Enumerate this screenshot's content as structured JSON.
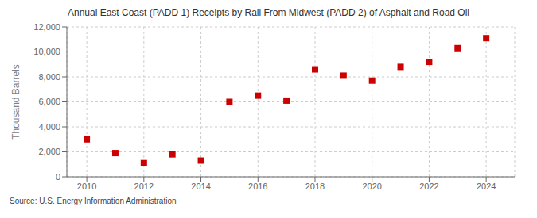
{
  "chart_data": {
    "type": "scatter",
    "title": "Annual East Coast (PADD 1) Receipts by Rail From Midwest (PADD 2) of Asphalt and Road Oil",
    "ylabel": "Thousand Barrels",
    "annotations": [
      "Source: U.S. Energy Information Administration"
    ],
    "x": [
      2010,
      2011,
      2012,
      2013,
      2014,
      2015,
      2016,
      2017,
      2018,
      2019,
      2020,
      2021,
      2022,
      2023,
      2024
    ],
    "values": [
      3000,
      1900,
      1100,
      1800,
      1300,
      6000,
      6500,
      6100,
      8600,
      8100,
      7700,
      8800,
      9200,
      10300,
      11100
    ],
    "color": "#CC0000",
    "marker": "square",
    "xlim": [
      2009.3,
      2025.0
    ],
    "xticks": [
      2010,
      2012,
      2014,
      2016,
      2018,
      2020,
      2022,
      2024
    ],
    "ylim": [
      0,
      12000
    ],
    "yticks": [
      0,
      {
        "value": 2000,
        "label": "2,000"
      },
      {
        "value": 4000,
        "label": "4,000"
      },
      {
        "value": 6000,
        "label": "6,000"
      },
      {
        "value": 8000,
        "label": "8,000"
      },
      {
        "value": 10000,
        "label": "10,000"
      },
      {
        "value": 12000,
        "label": "12,000"
      }
    ],
    "grid": true
  }
}
